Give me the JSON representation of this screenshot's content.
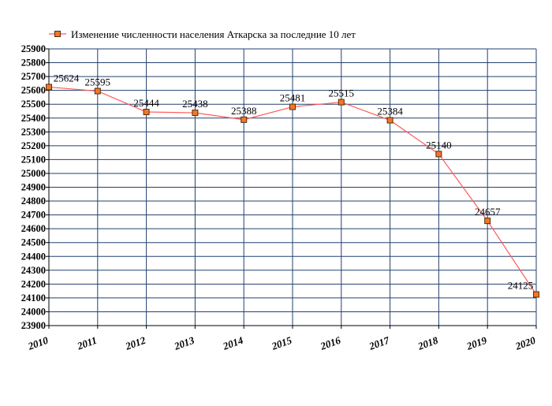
{
  "chart_data": {
    "type": "line",
    "x": [
      2010,
      2011,
      2012,
      2013,
      2014,
      2015,
      2016,
      2017,
      2018,
      2019,
      2020
    ],
    "series": [
      {
        "name": "Изменение численности населения Аткарска за последние 10 лет",
        "color": "#ff5a5a",
        "marker_color": "#f07828",
        "values": [
          25624,
          25595,
          25444,
          25438,
          25388,
          25481,
          25515,
          25384,
          25140,
          24657,
          24125
        ]
      }
    ],
    "xlim": [
      2010,
      2020
    ],
    "xticks": [
      2010,
      2011,
      2012,
      2013,
      2014,
      2015,
      2016,
      2017,
      2018,
      2019,
      2020
    ],
    "ylim": [
      23900,
      25900
    ],
    "yticks": [
      23900,
      24000,
      24100,
      24200,
      24300,
      24400,
      24500,
      24600,
      24700,
      24800,
      24900,
      25000,
      25100,
      25200,
      25300,
      25400,
      25500,
      25600,
      25700,
      25800,
      25900
    ],
    "grid": true,
    "grid_color": "#23406e",
    "legend": "top"
  }
}
